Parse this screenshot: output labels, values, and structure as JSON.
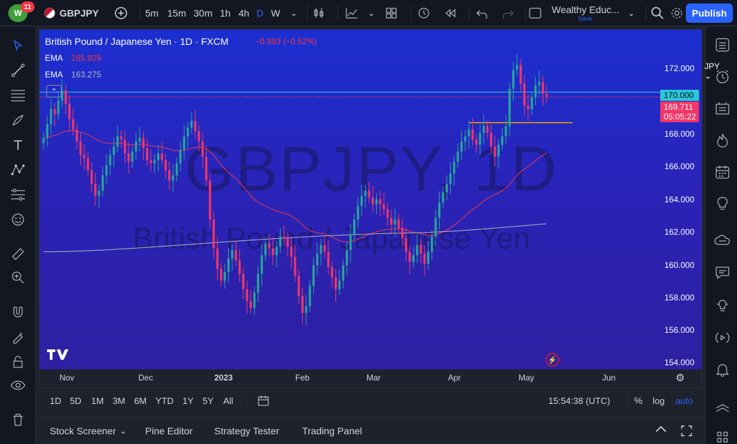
{
  "topbar": {
    "notification_count": "11",
    "symbol": "GBPJPY",
    "timeframes": [
      "5m",
      "15m",
      "30m",
      "1h",
      "4h",
      "D",
      "W"
    ],
    "active_timeframe": "D",
    "layout_name": "Wealthy Educ...",
    "layout_save": "Save",
    "publish_label": "Publish"
  },
  "legend": {
    "title": "British Pound / Japanese Yen · 1D · FXCM",
    "change": "−0.893 (−0.52%)",
    "ema1_label": "EMA",
    "ema1_value": "165.929",
    "ema2_label": "EMA",
    "ema2_value": "163.275",
    "ema1_color": "#f23645",
    "ema2_color": "#b2b5be"
  },
  "watermark": {
    "symbol": "GBPJPY, 1D",
    "name": "British Pound / Japanese Yen"
  },
  "price_axis": {
    "currency": "JPY",
    "ticks": [
      "172.000",
      "170.000",
      "168.000",
      "166.000",
      "164.000",
      "162.000",
      "160.000",
      "158.000",
      "156.000",
      "154.000"
    ],
    "line_label": "170.000",
    "last_price": "169.711",
    "countdown": "05:05:22",
    "line_color": "#28c8d8",
    "last_color": "#f23668"
  },
  "time_axis": {
    "labels": [
      "Nov",
      "Dec",
      "2023",
      "Feb",
      "Mar",
      "Apr",
      "May",
      "Jun"
    ]
  },
  "range_bar": {
    "ranges": [
      "1D",
      "5D",
      "1M",
      "3M",
      "6M",
      "YTD",
      "1Y",
      "5Y",
      "All"
    ],
    "clock": "15:54:38 (UTC)",
    "percent_label": "%",
    "log_label": "log",
    "auto_label": "auto"
  },
  "bottom_tabs": [
    "Stock Screener",
    "Pine Editor",
    "Strategy Tester",
    "Trading Panel"
  ],
  "colors": {
    "up": "#26a69a",
    "down": "#f23668",
    "accent": "#2962ff",
    "horizontal_line": "#28c8d8",
    "resistance_line": "#f2a900"
  },
  "chart_data": {
    "type": "candlestick",
    "y_range": [
      154,
      174
    ],
    "horizontal_lines": [
      170.0,
      168.2
    ],
    "closes": [
      167.3,
      168.1,
      169.0,
      168.7,
      169.5,
      170.1,
      169.3,
      168.4,
      167.8,
      167.1,
      166.3,
      166.1,
      165.4,
      164.6,
      163.9,
      164.2,
      165.1,
      165.7,
      166.3,
      166.8,
      167.4,
      167.2,
      166.4,
      165.9,
      166.5,
      167.1,
      167.3,
      166.7,
      166.0,
      165.8,
      166.0,
      166.4,
      166.0,
      165.4,
      164.8,
      165.1,
      165.8,
      166.6,
      167.4,
      167.9,
      168.3,
      167.7,
      167.1,
      166.2,
      164.8,
      162.5,
      160.8,
      159.6,
      158.9,
      159.4,
      160.2,
      160.7,
      160.1,
      159.3,
      158.4,
      157.7,
      157.3,
      158.2,
      159.3,
      160.4,
      161.1,
      160.8,
      160.4,
      160.9,
      161.5,
      161.4,
      160.9,
      160.3,
      159.2,
      158.0,
      157.0,
      157.4,
      158.6,
      159.8,
      160.5,
      161.0,
      160.6,
      159.7,
      159.1,
      158.4,
      158.9,
      159.8,
      160.7,
      161.6,
      162.5,
      163.3,
      163.9,
      164.2,
      163.8,
      163.4,
      163.7,
      163.4,
      163.1,
      162.6,
      162.2,
      162.5,
      162.0,
      161.4,
      160.6,
      160.0,
      160.4,
      161.0,
      160.5,
      159.9,
      160.6,
      161.5,
      162.6,
      163.5,
      164.1,
      164.6,
      165.2,
      165.9,
      166.5,
      167.1,
      167.4,
      167.8,
      167.2,
      166.9,
      167.6,
      168.0,
      167.6,
      166.8,
      166.2,
      166.9,
      167.4,
      168.0,
      170.2,
      171.3,
      171.6,
      170.5,
      169.2,
      169.0,
      169.7,
      170.4,
      170.6,
      169.9,
      169.711
    ],
    "ema_fast": "red moving average (value 165.929)",
    "ema_slow": "grey moving average (value 163.275)"
  }
}
